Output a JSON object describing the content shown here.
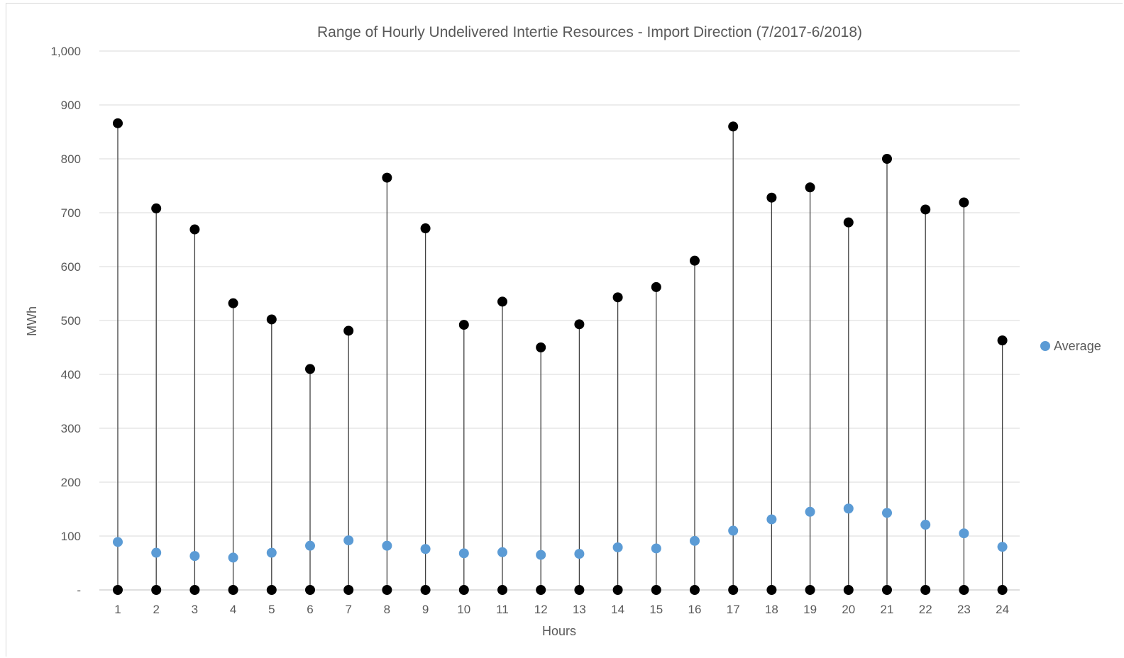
{
  "chart_data": {
    "type": "scatter",
    "title": "Range of Hourly Undelivered Intertie Resources  -  Import Direction (7/2017-6/2018)",
    "xlabel": "Hours",
    "ylabel": "MWh",
    "ylim": [
      0,
      1000
    ],
    "y_ticks": [
      0,
      100,
      200,
      300,
      400,
      500,
      600,
      700,
      800,
      900,
      1000
    ],
    "y_tick_labels": [
      "-",
      "100",
      "200",
      "300",
      "400",
      "500",
      "600",
      "700",
      "800",
      "900",
      "1,000"
    ],
    "categories": [
      "1",
      "2",
      "3",
      "4",
      "5",
      "6",
      "7",
      "8",
      "9",
      "10",
      "11",
      "12",
      "13",
      "14",
      "15",
      "16",
      "17",
      "18",
      "19",
      "20",
      "21",
      "22",
      "23",
      "24"
    ],
    "grid": true,
    "legend_position": "right",
    "series": [
      {
        "role": "max",
        "color": "#000000",
        "values": [
          866,
          708,
          669,
          532,
          502,
          410,
          481,
          765,
          671,
          492,
          535,
          450,
          493,
          543,
          562,
          611,
          860,
          728,
          747,
          682,
          800,
          706,
          719,
          463
        ]
      },
      {
        "name": "Average",
        "color": "#5b9bd5",
        "values": [
          89,
          69,
          63,
          60,
          69,
          82,
          92,
          82,
          76,
          68,
          70,
          65,
          67,
          79,
          77,
          91,
          110,
          131,
          145,
          151,
          143,
          121,
          105,
          80
        ]
      },
      {
        "role": "min",
        "color": "#000000",
        "values": [
          0,
          0,
          0,
          0,
          0,
          0,
          0,
          0,
          0,
          0,
          0,
          0,
          0,
          0,
          0,
          0,
          0,
          0,
          0,
          0,
          0,
          0,
          0,
          0
        ]
      }
    ]
  }
}
